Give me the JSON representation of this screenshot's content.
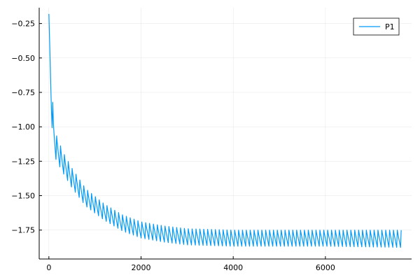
{
  "chart_data": {
    "type": "line",
    "title": "",
    "xlabel": "",
    "ylabel": "",
    "xlim": [
      -210,
      7870
    ],
    "ylim": [
      -1.96,
      -0.135
    ],
    "x_ticks": [
      0,
      2000,
      4000,
      6000
    ],
    "x_tick_labels": [
      "0",
      "2000",
      "4000",
      "6000"
    ],
    "y_ticks": [
      -1.75,
      -1.5,
      -1.25,
      -1.0,
      -0.75,
      -0.5,
      -0.25
    ],
    "y_tick_labels": [
      "−1.75",
      "−1.50",
      "−1.25",
      "−1.00",
      "−0.75",
      "−0.50",
      "−0.25"
    ],
    "grid": true,
    "legend": {
      "position": "top-right"
    },
    "series": [
      {
        "name": "P1",
        "color": "#009af9",
        "x_range": [
          0,
          7650
        ],
        "oscillation_period": 84,
        "envelope_points": [
          {
            "x": 0,
            "high": -0.18,
            "low": -0.5
          },
          {
            "x": 50,
            "high": -0.55,
            "low": -1.0
          },
          {
            "x": 100,
            "high": -0.95,
            "low": -1.16
          },
          {
            "x": 150,
            "high": -1.05,
            "low": -1.27
          },
          {
            "x": 300,
            "high": -1.18,
            "low": -1.36
          },
          {
            "x": 500,
            "high": -1.3,
            "low": -1.47
          },
          {
            "x": 800,
            "high": -1.45,
            "low": -1.6
          },
          {
            "x": 1200,
            "high": -1.56,
            "low": -1.7
          },
          {
            "x": 1600,
            "high": -1.64,
            "low": -1.78
          },
          {
            "x": 2000,
            "high": -1.69,
            "low": -1.83
          },
          {
            "x": 2500,
            "high": -1.72,
            "low": -1.86
          },
          {
            "x": 3000,
            "high": -1.74,
            "low": -1.88
          },
          {
            "x": 4000,
            "high": -1.75,
            "low": -1.89
          },
          {
            "x": 5000,
            "high": -1.75,
            "low": -1.89
          },
          {
            "x": 6000,
            "high": -1.75,
            "low": -1.89
          },
          {
            "x": 7650,
            "high": -1.75,
            "low": -1.9
          }
        ]
      }
    ]
  }
}
